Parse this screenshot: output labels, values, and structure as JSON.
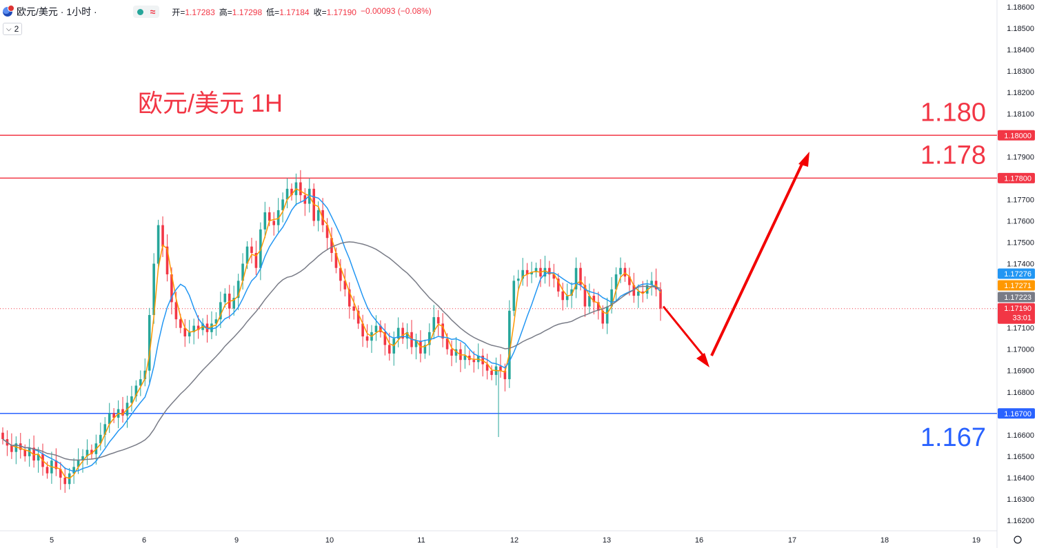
{
  "header": {
    "symbol_title": "欧元/美元 · 1小时 ·",
    "open_label": "开=",
    "open_value": "1.17283",
    "high_label": "高=",
    "high_value": "1.17298",
    "low_label": "低=",
    "low_value": "1.17184",
    "close_label": "收=",
    "close_value": "1.17190",
    "change": "−0.00093 (−0.08%)",
    "indicator_count": "2"
  },
  "colors": {
    "up": "#26a69a",
    "down": "#f23645",
    "ma_fast": "#ff9800",
    "ma_mid": "#2196f3",
    "ma_slow": "#787b86",
    "resistance": "#f23645",
    "support": "#2962ff",
    "arrow": "#f20000"
  },
  "chart_data": {
    "type": "line",
    "title": "欧元/美元 1H",
    "ylim": [
      1.1615,
      1.1865
    ],
    "y_ticks": [
      "1.18600",
      "1.18500",
      "1.18400",
      "1.18300",
      "1.18200",
      "1.18100",
      "1.17900",
      "1.17700",
      "1.17600",
      "1.17500",
      "1.17400",
      "1.17100",
      "1.17000",
      "1.16900",
      "1.16800",
      "1.16600",
      "1.16500",
      "1.16400",
      "1.16300",
      "1.16200"
    ],
    "x_ticks": [
      "5",
      "6",
      "9",
      "10",
      "11",
      "12",
      "13",
      "16",
      "17",
      "18",
      "19"
    ],
    "price_tags": [
      {
        "value": "1.18000",
        "kind": "resistance"
      },
      {
        "value": "1.17800",
        "kind": "resistance"
      },
      {
        "value": "1.16700",
        "kind": "support"
      },
      {
        "value": "1.17276",
        "kind": "ma_mid"
      },
      {
        "value": "1.17271",
        "kind": "ma_fast"
      },
      {
        "value": "1.17223",
        "kind": "ma_slow"
      },
      {
        "value": "1.17190",
        "kind": "last",
        "countdown": "33:01"
      }
    ],
    "levels": [
      {
        "price": 1.18,
        "label": "1.180",
        "color": "#f23645"
      },
      {
        "price": 1.178,
        "label": "1.178",
        "color": "#f23645"
      },
      {
        "price": 1.167,
        "label": "1.167",
        "color": "#2962ff"
      }
    ],
    "candles_close": [
      1.1658,
      1.1655,
      1.1652,
      1.1656,
      1.1653,
      1.165,
      1.1654,
      1.1648,
      1.1651,
      1.1645,
      1.1642,
      1.1648,
      1.1644,
      1.164,
      1.1637,
      1.1642,
      1.1645,
      1.1648,
      1.165,
      1.1653,
      1.1651,
      1.1656,
      1.166,
      1.1665,
      1.167,
      1.1668,
      1.1672,
      1.1669,
      1.1675,
      1.1678,
      1.1683,
      1.1686,
      1.169,
      1.1716,
      1.174,
      1.1758,
      1.1748,
      1.1735,
      1.1722,
      1.1714,
      1.171,
      1.1706,
      1.1708,
      1.1711,
      1.1709,
      1.1712,
      1.1708,
      1.1712,
      1.1714,
      1.1722,
      1.1726,
      1.1719,
      1.1724,
      1.1732,
      1.174,
      1.1748,
      1.1745,
      1.1738,
      1.1756,
      1.1764,
      1.176,
      1.1758,
      1.1765,
      1.177,
      1.1775,
      1.1772,
      1.1778,
      1.1772,
      1.1768,
      1.1775,
      1.176,
      1.1765,
      1.1758,
      1.1752,
      1.1745,
      1.1738,
      1.1732,
      1.1728,
      1.172,
      1.1718,
      1.1712,
      1.1706,
      1.1704,
      1.1708,
      1.1711,
      1.1708,
      1.1702,
      1.1698,
      1.1705,
      1.171,
      1.1705,
      1.1708,
      1.1701,
      1.1704,
      1.1698,
      1.1702,
      1.1708,
      1.1715,
      1.1712,
      1.1705,
      1.17,
      1.1697,
      1.17,
      1.1695,
      1.1697,
      1.1695,
      1.1694,
      1.1697,
      1.1693,
      1.169,
      1.1688,
      1.1692,
      1.169,
      1.1686,
      1.1718,
      1.1732,
      1.1733,
      1.1737,
      1.1735,
      1.1736,
      1.1738,
      1.1734,
      1.1738,
      1.1735,
      1.1733,
      1.1727,
      1.1723,
      1.1725,
      1.1728,
      1.1738,
      1.173,
      1.172,
      1.1725,
      1.1722,
      1.1718,
      1.1712,
      1.172,
      1.1728,
      1.1735,
      1.1738,
      1.1734,
      1.173,
      1.1725,
      1.1727,
      1.1726,
      1.173,
      1.1732,
      1.1728,
      1.1719
    ],
    "candles_x_days": [
      0,
      0.04,
      0.08,
      0.12,
      0.16,
      0.2,
      0.24,
      0.28,
      0.32,
      0.36,
      0.4,
      0.44,
      0.48,
      0.52,
      0.56,
      0.6,
      0.64,
      0.68,
      0.72,
      0.76,
      0.8,
      0.84,
      0.88,
      0.92,
      0.96,
      1.0
    ]
  },
  "annotations": {
    "title_text": "欧元/美元 1H"
  }
}
